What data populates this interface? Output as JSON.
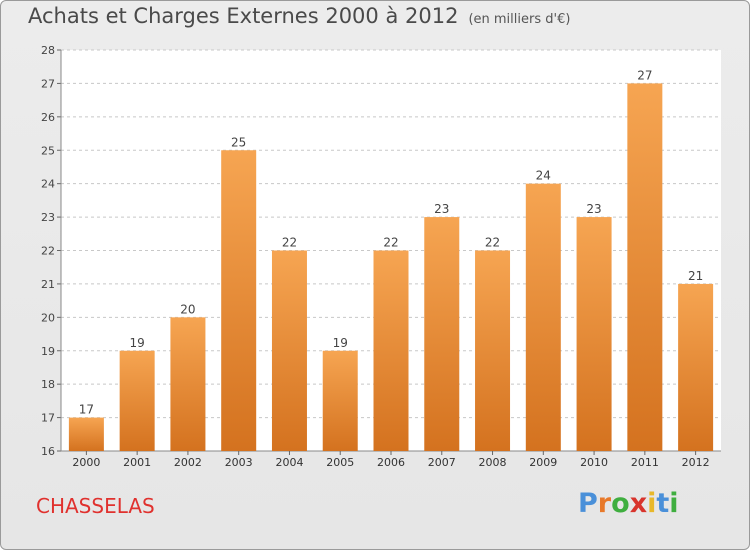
{
  "chart_data": {
    "type": "bar",
    "title": "Achats et Charges Externes 2000 à 2012",
    "subtitle": "(en milliers d'€)",
    "categories": [
      "2000",
      "2001",
      "2002",
      "2003",
      "2004",
      "2005",
      "2006",
      "2007",
      "2008",
      "2009",
      "2010",
      "2011",
      "2012"
    ],
    "values": [
      17,
      19,
      20,
      25,
      22,
      19,
      22,
      23,
      22,
      24,
      23,
      27,
      21
    ],
    "ylim": [
      16,
      28
    ],
    "yticks": [
      16,
      17,
      18,
      19,
      20,
      21,
      22,
      23,
      24,
      25,
      26,
      27,
      28
    ],
    "grid": true,
    "bar_color_top": "#f6a552",
    "bar_color_bottom": "#d4721f"
  },
  "footer": {
    "place": "CHASSELAS",
    "logo": "Proxiti"
  },
  "logo_colors": [
    "#4a90d9",
    "#e8792a",
    "#3fae3f",
    "#d8342c",
    "#e8b82a",
    "#4a90d9",
    "#3fae3f"
  ]
}
